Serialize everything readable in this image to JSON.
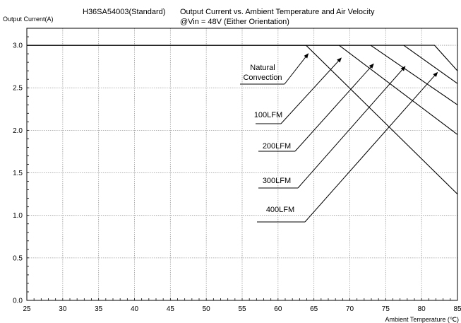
{
  "chart_data": {
    "type": "line",
    "title_line1_left": "H36SA54003(Standard)",
    "title_line1_right": "Output Current vs. Ambient Temperature and Air Velocity",
    "title_line2": "@Vin = 48V (Either Orientation)",
    "ylabel": "Output Current(A)",
    "xlabel": "Ambient Temperature (℃)",
    "xlim": [
      25,
      85
    ],
    "ylim": [
      0,
      3.2
    ],
    "x_ticks": [
      "25",
      "30",
      "35",
      "40",
      "45",
      "50",
      "55",
      "60",
      "65",
      "70",
      "75",
      "80",
      "85"
    ],
    "y_ticks": [
      "0.0",
      "0.5",
      "1.0",
      "1.5",
      "2.0",
      "2.5",
      "3.0"
    ],
    "grid": true,
    "series": [
      {
        "name": "Natural Convection",
        "x": [
          25,
          63.9,
          85
        ],
        "y": [
          3.0,
          3.0,
          1.25
        ]
      },
      {
        "name": "100LFM",
        "x": [
          25,
          68.5,
          85
        ],
        "y": [
          3.0,
          3.0,
          1.95
        ]
      },
      {
        "name": "200LFM",
        "x": [
          25,
          72.9,
          85
        ],
        "y": [
          3.0,
          3.0,
          2.3
        ]
      },
      {
        "name": "300LFM",
        "x": [
          25,
          77.5,
          85
        ],
        "y": [
          3.0,
          3.0,
          2.55
        ]
      },
      {
        "name": "400LFM",
        "x": [
          25,
          81.8,
          85
        ],
        "y": [
          3.0,
          3.0,
          2.7
        ]
      }
    ],
    "annotations": [
      {
        "lines": [
          "Natural",
          "Convection"
        ],
        "arrow_to": [
          64.2,
          2.9
        ]
      },
      {
        "lines": [
          "100LFM"
        ],
        "arrow_to": [
          68.8,
          2.85
        ]
      },
      {
        "lines": [
          "200LFM"
        ],
        "arrow_to": [
          73.3,
          2.78
        ]
      },
      {
        "lines": [
          "300LFM"
        ],
        "arrow_to": [
          77.7,
          2.75
        ]
      },
      {
        "lines": [
          "400LFM"
        ],
        "arrow_to": [
          82.2,
          2.68
        ]
      }
    ]
  }
}
